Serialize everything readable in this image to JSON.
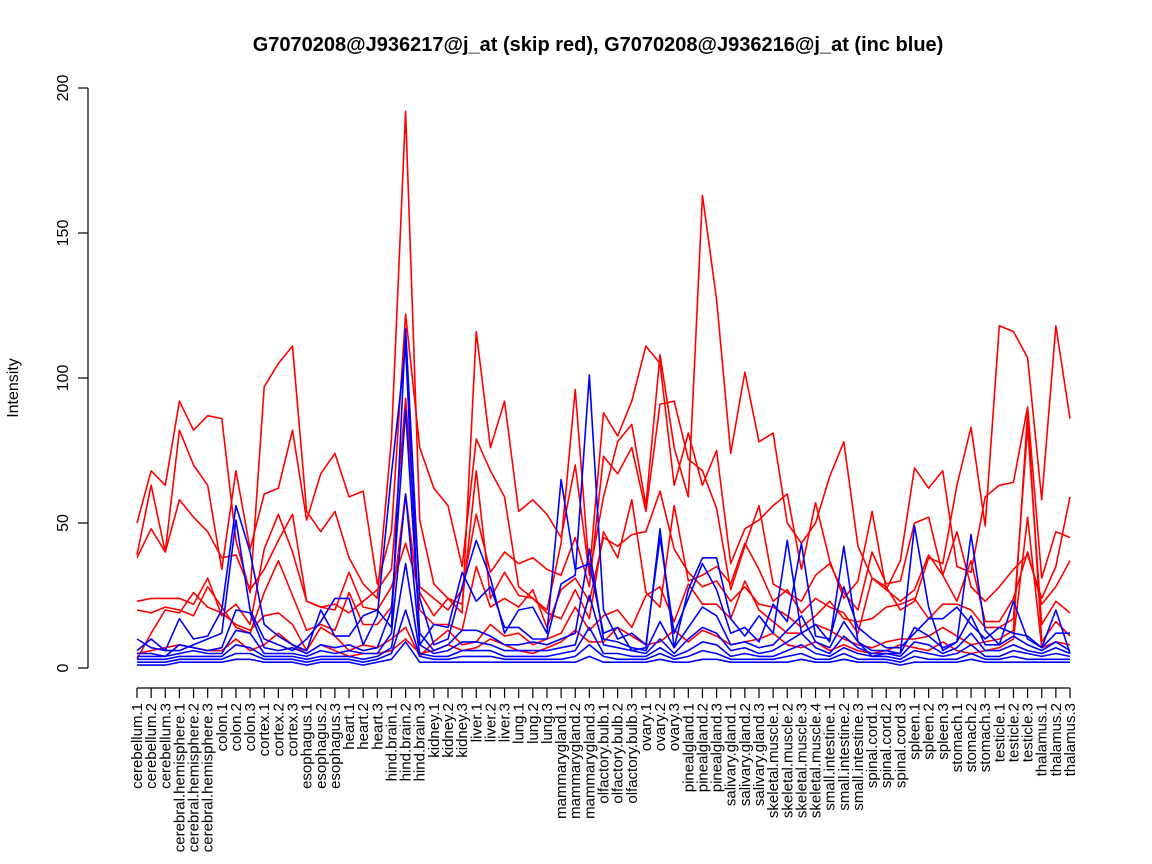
{
  "chart_data": {
    "type": "line",
    "title": "G7070208@J936217@j_at (skip red), G7070208@J936216@j_at (inc blue)",
    "xlabel": "",
    "ylabel": "Intensity",
    "ylim": [
      0,
      200
    ],
    "yticks": [
      0,
      50,
      100,
      150,
      200
    ],
    "categories": [
      "cerebellum.1",
      "cerebellum.2",
      "cerebellum.3",
      "cerebral.hemisphere.1",
      "cerebral.hemisphere.2",
      "cerebral.hemisphere.3",
      "colon.1",
      "colon.2",
      "colon.3",
      "cortex.1",
      "cortex.2",
      "cortex.3",
      "esophagus.1",
      "esophagus.2",
      "esophagus.3",
      "heart.1",
      "heart.2",
      "heart.3",
      "hind.brain.1",
      "hind.brain.2",
      "hind.brain.3",
      "kidney.1",
      "kidney.2",
      "kidney.3",
      "liver.1",
      "liver.2",
      "liver.3",
      "lung.1",
      "lung.2",
      "lung.3",
      "mammarygland.1",
      "mammarygland.2",
      "mammarygland.3",
      "olfactory.bulb.1",
      "olfactory.bulb.2",
      "olfactory.bulb.3",
      "ovary.1",
      "ovary.2",
      "ovary.3",
      "pinealgland.1",
      "pinealgland.2",
      "pinealgland.3",
      "salivary.gland.1",
      "salivary.gland.2",
      "salivary.gland.3",
      "skeletal.muscle.1",
      "skeletal.muscle.2",
      "skeletal.muscle.3",
      "skeletal.muscle.4",
      "small.intestine.1",
      "small.intestine.2",
      "small.intestine.3",
      "spinal.cord.1",
      "spinal.cord.2",
      "spinal.cord.3",
      "spleen.1",
      "spleen.2",
      "spleen.3",
      "stomach.1",
      "stomach.2",
      "stomach.3",
      "testicle.1",
      "testicle.2",
      "testicle.3",
      "thalamus.1",
      "thalamus.2",
      "thalamus.3"
    ],
    "series": [
      {
        "color": "#ff0000",
        "values": [
          50,
          68,
          63,
          92,
          82,
          87,
          86,
          44,
          26,
          97,
          105,
          111,
          54,
          47,
          54,
          38,
          29,
          24,
          79,
          192,
          51,
          29,
          24,
          19,
          116,
          76,
          92,
          54,
          58,
          53,
          45,
          70,
          32,
          59,
          78,
          84,
          56,
          108,
          76,
          59,
          163,
          127,
          74,
          102,
          78,
          81,
          50,
          43,
          50,
          66,
          78,
          42,
          31,
          28,
          20,
          23,
          38,
          36,
          63,
          83,
          49,
          118,
          116,
          107,
          58,
          118,
          86
        ]
      },
      {
        "color": "#ff0000",
        "values": [
          39,
          63,
          40,
          82,
          70,
          63,
          34,
          68,
          41,
          60,
          62,
          82,
          51,
          67,
          74,
          59,
          61,
          29,
          47,
          122,
          76,
          62,
          56,
          35,
          79,
          68,
          59,
          28,
          24,
          20,
          43,
          96,
          33,
          88,
          80,
          92,
          111,
          105,
          63,
          81,
          63,
          75,
          36,
          48,
          51,
          56,
          60,
          34,
          57,
          37,
          24,
          30,
          54,
          27,
          37,
          69,
          62,
          68,
          35,
          33,
          59,
          63,
          64,
          90,
          31,
          47,
          45
        ]
      },
      {
        "color": "#ff0000",
        "values": [
          38,
          48,
          40,
          58,
          52,
          47,
          38,
          39,
          27,
          34,
          44,
          53,
          23,
          21,
          22,
          19,
          23,
          27,
          34,
          93,
          28,
          24,
          20,
          27,
          53,
          33,
          40,
          36,
          38,
          34,
          32,
          45,
          28,
          73,
          67,
          76,
          54,
          91,
          92,
          72,
          68,
          55,
          27,
          42,
          56,
          29,
          26,
          23,
          32,
          36,
          26,
          20,
          40,
          29,
          30,
          50,
          52,
          32,
          47,
          28,
          23,
          28,
          34,
          39,
          24,
          35,
          59
        ]
      },
      {
        "color": "#ff0000",
        "values": [
          23,
          24,
          24,
          24,
          22,
          31,
          18,
          22,
          15,
          41,
          53,
          40,
          23,
          21,
          20,
          33,
          21,
          20,
          28,
          43,
          26,
          18,
          24,
          22,
          68,
          24,
          33,
          25,
          24,
          19,
          17,
          27,
          17,
          47,
          38,
          58,
          26,
          21,
          56,
          30,
          32,
          35,
          29,
          43,
          34,
          23,
          27,
          19,
          24,
          21,
          19,
          12,
          31,
          27,
          23,
          27,
          39,
          32,
          23,
          37,
          16,
          16,
          24,
          40,
          22,
          28,
          37
        ]
      },
      {
        "color": "#ff0000",
        "values": [
          20,
          19,
          21,
          20,
          18,
          28,
          21,
          14,
          12,
          26,
          37,
          25,
          13,
          15,
          13,
          26,
          15,
          15,
          21,
          60,
          20,
          15,
          15,
          13,
          35,
          21,
          24,
          21,
          27,
          14,
          27,
          31,
          23,
          45,
          42,
          46,
          47,
          61,
          41,
          33,
          28,
          30,
          23,
          28,
          22,
          21,
          18,
          14,
          18,
          23,
          17,
          16,
          17,
          21,
          22,
          24,
          17,
          22,
          22,
          20,
          14,
          14,
          17,
          83,
          15,
          23,
          19
        ]
      },
      {
        "color": "#ff0000",
        "values": [
          3,
          12,
          20,
          19,
          26,
          21,
          19,
          15,
          13,
          18,
          19,
          15,
          6,
          14,
          11,
          6,
          8,
          7,
          10,
          14,
          4,
          9,
          13,
          8,
          9,
          15,
          11,
          12,
          8,
          10,
          12,
          21,
          13,
          18,
          20,
          14,
          25,
          28,
          16,
          29,
          22,
          22,
          17,
          30,
          20,
          16,
          12,
          12,
          15,
          13,
          10,
          8,
          7,
          9,
          10,
          10,
          11,
          14,
          11,
          8,
          9,
          10,
          13,
          88,
          9,
          16,
          11
        ]
      },
      {
        "color": "#ff0000",
        "values": [
          5,
          6,
          7,
          8,
          7,
          6,
          6,
          10,
          6,
          8,
          12,
          8,
          5,
          8,
          6,
          4,
          5,
          5,
          6,
          10,
          5,
          6,
          8,
          6,
          7,
          10,
          8,
          6,
          5,
          7,
          9,
          13,
          9,
          9,
          14,
          11,
          8,
          9,
          13,
          9,
          13,
          11,
          8,
          9,
          10,
          12,
          8,
          7,
          9,
          6,
          8,
          6,
          5,
          6,
          8,
          7,
          6,
          9,
          6,
          5,
          6,
          7,
          10,
          52,
          7,
          9,
          8
        ]
      },
      {
        "color": "#0000ff",
        "values": [
          10,
          7,
          6,
          17,
          10,
          11,
          20,
          56,
          40,
          15,
          11,
          8,
          6,
          20,
          11,
          11,
          18,
          20,
          14,
          117,
          24,
          8,
          10,
          28,
          44,
          31,
          12,
          20,
          21,
          12,
          65,
          34,
          36,
          12,
          14,
          6,
          7,
          48,
          7,
          27,
          38,
          38,
          17,
          11,
          18,
          12,
          44,
          12,
          15,
          9,
          42,
          9,
          4,
          5,
          5,
          49,
          21,
          6,
          9,
          46,
          13,
          8,
          23,
          10,
          7,
          20,
          5
        ]
      },
      {
        "color": "#0000ff",
        "values": [
          6,
          10,
          6,
          6,
          8,
          10,
          12,
          51,
          20,
          10,
          8,
          6,
          10,
          16,
          24,
          24,
          8,
          18,
          67,
          111,
          8,
          15,
          14,
          33,
          23,
          28,
          14,
          14,
          10,
          10,
          29,
          32,
          101,
          20,
          10,
          12,
          8,
          45,
          12,
          24,
          36,
          27,
          12,
          14,
          9,
          22,
          16,
          43,
          11,
          10,
          28,
          14,
          10,
          7,
          7,
          12,
          17,
          17,
          21,
          15,
          10,
          14,
          12,
          11,
          7,
          12,
          12
        ]
      },
      {
        "color": "#0000ff",
        "values": [
          5,
          5,
          4,
          8,
          7,
          6,
          7,
          20,
          19,
          7,
          6,
          7,
          5,
          8,
          7,
          8,
          6,
          7,
          20,
          89,
          12,
          6,
          8,
          13,
          13,
          11,
          8,
          8,
          9,
          8,
          10,
          12,
          41,
          10,
          9,
          7,
          6,
          16,
          7,
          14,
          21,
          18,
          8,
          9,
          7,
          8,
          13,
          18,
          9,
          7,
          16,
          9,
          6,
          6,
          5,
          14,
          11,
          7,
          9,
          18,
          8,
          8,
          11,
          8,
          6,
          9,
          6
        ]
      },
      {
        "color": "#0000ff",
        "values": [
          4,
          4,
          4,
          5,
          6,
          5,
          5,
          13,
          12,
          5,
          5,
          5,
          4,
          6,
          5,
          6,
          5,
          5,
          12,
          60,
          8,
          5,
          6,
          9,
          9,
          8,
          6,
          6,
          6,
          6,
          7,
          8,
          25,
          8,
          7,
          6,
          5,
          10,
          5,
          10,
          14,
          12,
          6,
          7,
          5,
          6,
          9,
          12,
          7,
          5,
          11,
          7,
          5,
          5,
          4,
          9,
          8,
          5,
          7,
          12,
          6,
          6,
          8,
          6,
          5,
          7,
          5
        ]
      },
      {
        "color": "#0000ff",
        "values": [
          3,
          3,
          3,
          4,
          4,
          4,
          4,
          8,
          7,
          4,
          4,
          4,
          3,
          4,
          4,
          4,
          3,
          4,
          7,
          36,
          5,
          4,
          4,
          6,
          6,
          6,
          4,
          4,
          4,
          4,
          5,
          6,
          14,
          5,
          5,
          4,
          4,
          7,
          4,
          6,
          9,
          8,
          4,
          5,
          4,
          4,
          6,
          8,
          5,
          4,
          7,
          5,
          4,
          4,
          3,
          6,
          5,
          4,
          5,
          8,
          4,
          4,
          6,
          5,
          4,
          5,
          4
        ]
      },
      {
        "color": "#0000ff",
        "values": [
          2,
          2,
          2,
          3,
          3,
          3,
          3,
          5,
          5,
          3,
          3,
          3,
          2,
          3,
          3,
          3,
          2,
          3,
          5,
          20,
          4,
          3,
          3,
          4,
          4,
          4,
          3,
          3,
          3,
          3,
          3,
          4,
          8,
          4,
          3,
          3,
          3,
          5,
          3,
          4,
          6,
          5,
          3,
          3,
          3,
          3,
          4,
          5,
          3,
          3,
          5,
          3,
          3,
          3,
          2,
          4,
          3,
          3,
          3,
          5,
          3,
          3,
          4,
          3,
          3,
          3,
          3
        ]
      },
      {
        "color": "#0000ff",
        "values": [
          1,
          1,
          1,
          2,
          2,
          2,
          2,
          3,
          3,
          2,
          2,
          2,
          1,
          2,
          2,
          2,
          1,
          2,
          3,
          9,
          2,
          2,
          2,
          2,
          2,
          2,
          2,
          2,
          2,
          2,
          2,
          2,
          4,
          2,
          2,
          2,
          2,
          3,
          2,
          2,
          3,
          3,
          2,
          2,
          2,
          2,
          2,
          3,
          2,
          2,
          3,
          2,
          2,
          2,
          1,
          2,
          2,
          2,
          2,
          3,
          2,
          2,
          2,
          2,
          2,
          2,
          2
        ]
      }
    ]
  }
}
